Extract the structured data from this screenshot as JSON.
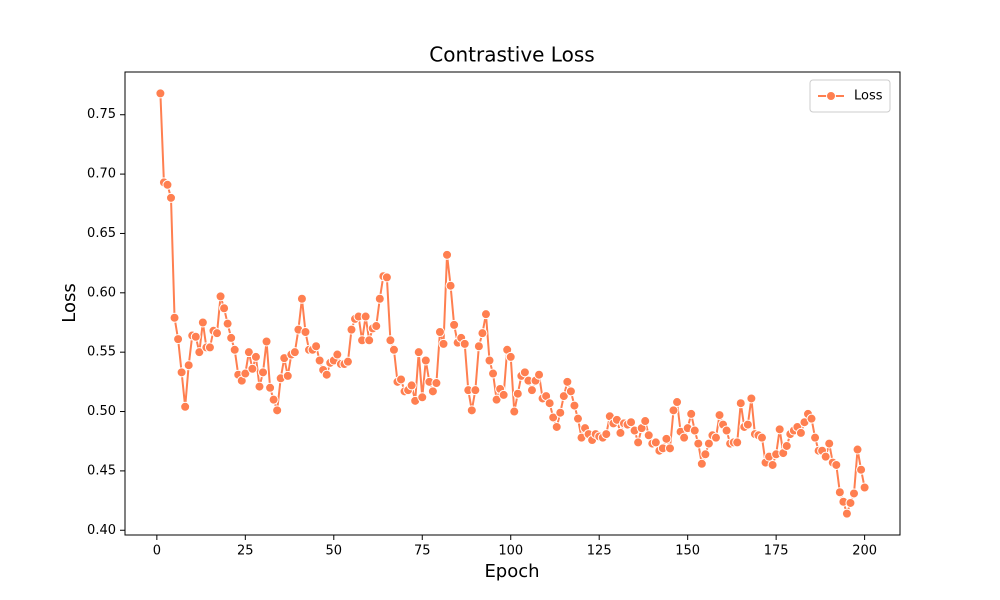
{
  "chart_data": {
    "type": "line",
    "title": "Contrastive Loss",
    "xlabel": "Epoch",
    "ylabel": "Loss",
    "x": [
      1,
      2,
      3,
      4,
      5,
      6,
      7,
      8,
      9,
      10,
      11,
      12,
      13,
      14,
      15,
      16,
      17,
      18,
      19,
      20,
      21,
      22,
      23,
      24,
      25,
      26,
      27,
      28,
      29,
      30,
      31,
      32,
      33,
      34,
      35,
      36,
      37,
      38,
      39,
      40,
      41,
      42,
      43,
      44,
      45,
      46,
      47,
      48,
      49,
      50,
      51,
      52,
      53,
      54,
      55,
      56,
      57,
      58,
      59,
      60,
      61,
      62,
      63,
      64,
      65,
      66,
      67,
      68,
      69,
      70,
      71,
      72,
      73,
      74,
      75,
      76,
      77,
      78,
      79,
      80,
      81,
      82,
      83,
      84,
      85,
      86,
      87,
      88,
      89,
      90,
      91,
      92,
      93,
      94,
      95,
      96,
      97,
      98,
      99,
      100,
      101,
      102,
      103,
      104,
      105,
      106,
      107,
      108,
      109,
      110,
      111,
      112,
      113,
      114,
      115,
      116,
      117,
      118,
      119,
      120,
      121,
      122,
      123,
      124,
      125,
      126,
      127,
      128,
      129,
      130,
      131,
      132,
      133,
      134,
      135,
      136,
      137,
      138,
      139,
      140,
      141,
      142,
      143,
      144,
      145,
      146,
      147,
      148,
      149,
      150,
      151,
      152,
      153,
      154,
      155,
      156,
      157,
      158,
      159,
      160,
      161,
      162,
      163,
      164,
      165,
      166,
      167,
      168,
      169,
      170,
      171,
      172,
      173,
      174,
      175,
      176,
      177,
      178,
      179,
      180,
      181,
      182,
      183,
      184,
      185,
      186,
      187,
      188,
      189,
      190,
      191,
      192,
      193,
      194,
      195,
      196,
      197,
      198,
      199,
      200
    ],
    "series": [
      {
        "name": "Loss",
        "color": "#ff7f50",
        "values": [
          0.768,
          0.693,
          0.691,
          0.68,
          0.579,
          0.561,
          0.533,
          0.504,
          0.539,
          0.564,
          0.563,
          0.55,
          0.575,
          0.554,
          0.554,
          0.568,
          0.566,
          0.597,
          0.587,
          0.574,
          0.562,
          0.552,
          0.531,
          0.526,
          0.532,
          0.55,
          0.536,
          0.546,
          0.521,
          0.533,
          0.559,
          0.52,
          0.51,
          0.501,
          0.528,
          0.545,
          0.53,
          0.548,
          0.55,
          0.569,
          0.595,
          0.567,
          0.552,
          0.552,
          0.555,
          0.543,
          0.535,
          0.531,
          0.541,
          0.543,
          0.548,
          0.54,
          0.54,
          0.542,
          0.569,
          0.578,
          0.58,
          0.56,
          0.58,
          0.56,
          0.57,
          0.572,
          0.595,
          0.614,
          0.613,
          0.56,
          0.552,
          0.525,
          0.527,
          0.517,
          0.518,
          0.522,
          0.509,
          0.55,
          0.512,
          0.543,
          0.525,
          0.517,
          0.524,
          0.567,
          0.557,
          0.632,
          0.606,
          0.573,
          0.558,
          0.562,
          0.557,
          0.518,
          0.501,
          0.518,
          0.555,
          0.566,
          0.582,
          0.543,
          0.532,
          0.51,
          0.519,
          0.514,
          0.552,
          0.546,
          0.5,
          0.515,
          0.53,
          0.533,
          0.526,
          0.518,
          0.526,
          0.531,
          0.511,
          0.513,
          0.507,
          0.495,
          0.487,
          0.499,
          0.513,
          0.525,
          0.517,
          0.505,
          0.494,
          0.478,
          0.486,
          0.481,
          0.476,
          0.481,
          0.479,
          0.478,
          0.481,
          0.496,
          0.49,
          0.493,
          0.482,
          0.49,
          0.489,
          0.491,
          0.484,
          0.474,
          0.486,
          0.492,
          0.48,
          0.473,
          0.474,
          0.467,
          0.469,
          0.477,
          0.469,
          0.501,
          0.508,
          0.483,
          0.478,
          0.486,
          0.498,
          0.484,
          0.473,
          0.456,
          0.464,
          0.473,
          0.48,
          0.478,
          0.497,
          0.489,
          0.484,
          0.473,
          0.474,
          0.474,
          0.507,
          0.487,
          0.489,
          0.511,
          0.481,
          0.48,
          0.478,
          0.457,
          0.462,
          0.455,
          0.464,
          0.485,
          0.465,
          0.471,
          0.481,
          0.484,
          0.487,
          0.482,
          0.491,
          0.498,
          0.494,
          0.478,
          0.467,
          0.467,
          0.462,
          0.473,
          0.457,
          0.455,
          0.432,
          0.424,
          0.414,
          0.423,
          0.431,
          0.468,
          0.451,
          0.436
        ]
      }
    ],
    "xlim": [
      -9,
      210
    ],
    "xticks": [
      0,
      25,
      50,
      75,
      100,
      125,
      150,
      175,
      200
    ],
    "ylim": [
      0.396,
      0.786
    ],
    "yticks": [
      {
        "value": 0.4,
        "label": "0.40"
      },
      0.45,
      {
        "value": 0.5,
        "label": "0.50"
      },
      0.55,
      {
        "value": 0.6,
        "label": "0.60"
      },
      0.65,
      {
        "value": 0.7,
        "label": "0.70"
      },
      0.75
    ],
    "grid": false,
    "legend": "upper right"
  }
}
